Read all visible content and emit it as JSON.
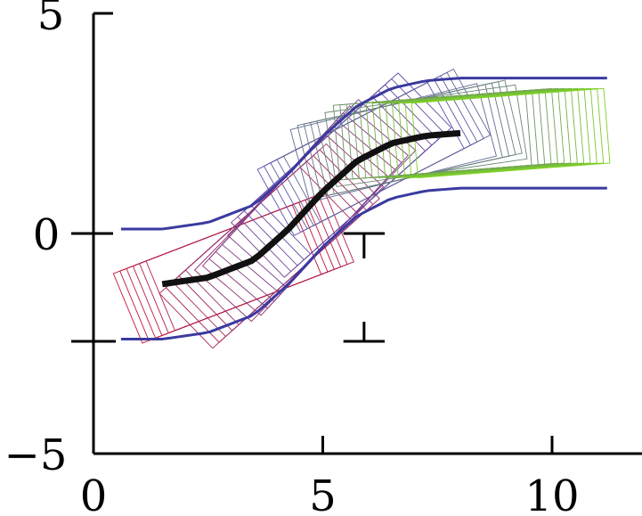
{
  "chart_data": {
    "type": "line",
    "title": "",
    "xlabel": "",
    "ylabel": "",
    "xlim": [
      0,
      12
    ],
    "ylim": [
      -5,
      5
    ],
    "x_ticks": [
      0,
      5,
      10
    ],
    "y_ticks": [
      -5,
      0,
      5
    ],
    "x_tick_labels": [
      "0",
      "5",
      "10"
    ],
    "y_tick_labels": [
      "−5",
      "0",
      "5"
    ],
    "grid": false,
    "colors": {
      "start": "#c8102e",
      "middle": "#5a4fb0",
      "end": "#7ed321",
      "boundary": "#3a3aa0",
      "centerline": "#111111"
    },
    "centerline": {
      "x": [
        1.5,
        2.5,
        3.5,
        4.25,
        5.0,
        5.75,
        6.5,
        7.25,
        8.0
      ],
      "y": [
        -1.15,
        -1.0,
        -0.6,
        0.1,
        0.95,
        1.65,
        2.05,
        2.22,
        2.28
      ]
    },
    "lane_width": 1.8,
    "lane_outline": {
      "x_start": 0.6,
      "x_end": 11.2,
      "lower_y_at_start": -2.0,
      "upper_y_at_start": -0.35,
      "lower_y_at_end": 1.45,
      "upper_y_at_end": 3.15
    },
    "vehicle_rectangles": {
      "count": 46,
      "length": 4.2,
      "width": 1.7
    },
    "marker": {
      "x": 5.9,
      "y_top": 0.0,
      "y_bottom": -2.45,
      "cap_half_width": 0.45
    },
    "left_extra_tick_y": -2.45
  }
}
